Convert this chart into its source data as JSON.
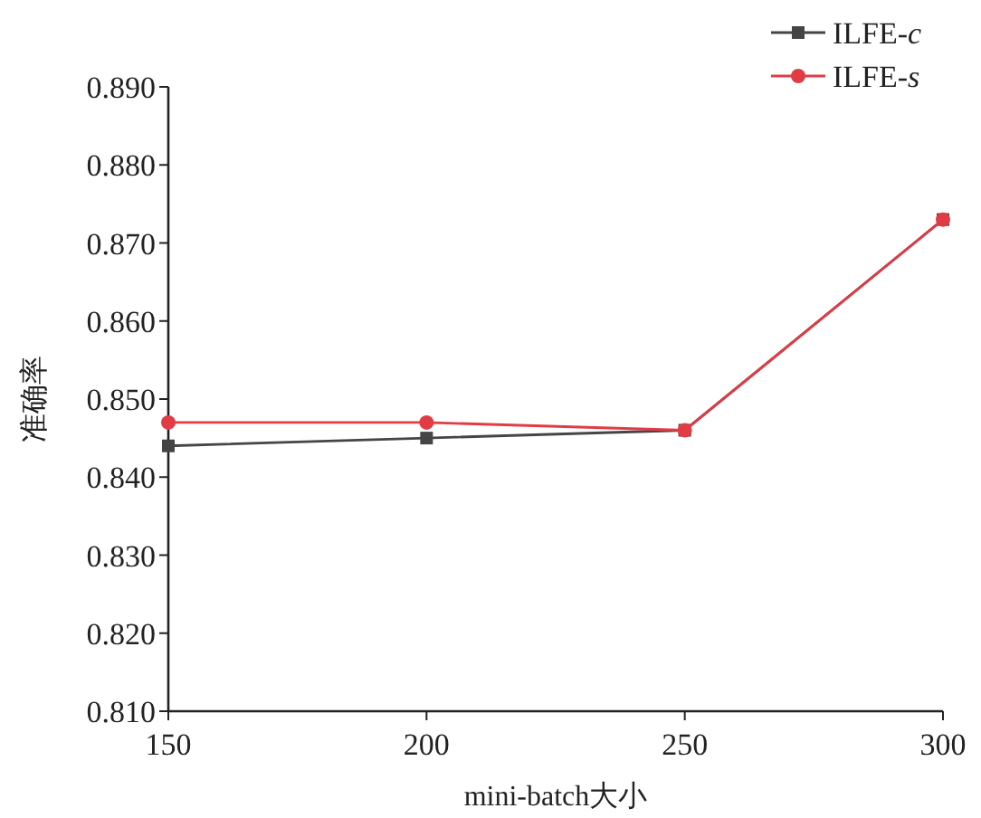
{
  "chart_data": {
    "type": "line",
    "xlabel": "mini-batch大小",
    "ylabel": "准确率",
    "x": [
      150,
      200,
      250,
      300
    ],
    "xlim": [
      150,
      300
    ],
    "xticks": [
      150,
      200,
      250,
      300
    ],
    "ylim": [
      0.81,
      0.89
    ],
    "yticks": [
      {
        "value": 0.81,
        "label": "0.810"
      },
      {
        "value": 0.82,
        "label": "0.820"
      },
      {
        "value": 0.83,
        "label": "0.830"
      },
      {
        "value": 0.84,
        "label": "0.840"
      },
      {
        "value": 0.85,
        "label": "0.850"
      },
      {
        "value": 0.86,
        "label": "0.860"
      },
      {
        "value": 0.87,
        "label": "0.870"
      },
      {
        "value": 0.88,
        "label": "0.880"
      },
      {
        "value": 0.89,
        "label": "0.890"
      }
    ],
    "legend": "top right",
    "grid": false,
    "series": [
      {
        "name": "ILFE-*c*",
        "color": "#454545",
        "marker": "square",
        "values": [
          0.844,
          0.845,
          0.846,
          0.873
        ]
      },
      {
        "name": "ILFE-*s*",
        "color": "#e13c46",
        "marker": "circle",
        "values": [
          0.847,
          0.847,
          0.846,
          0.873
        ]
      }
    ]
  }
}
